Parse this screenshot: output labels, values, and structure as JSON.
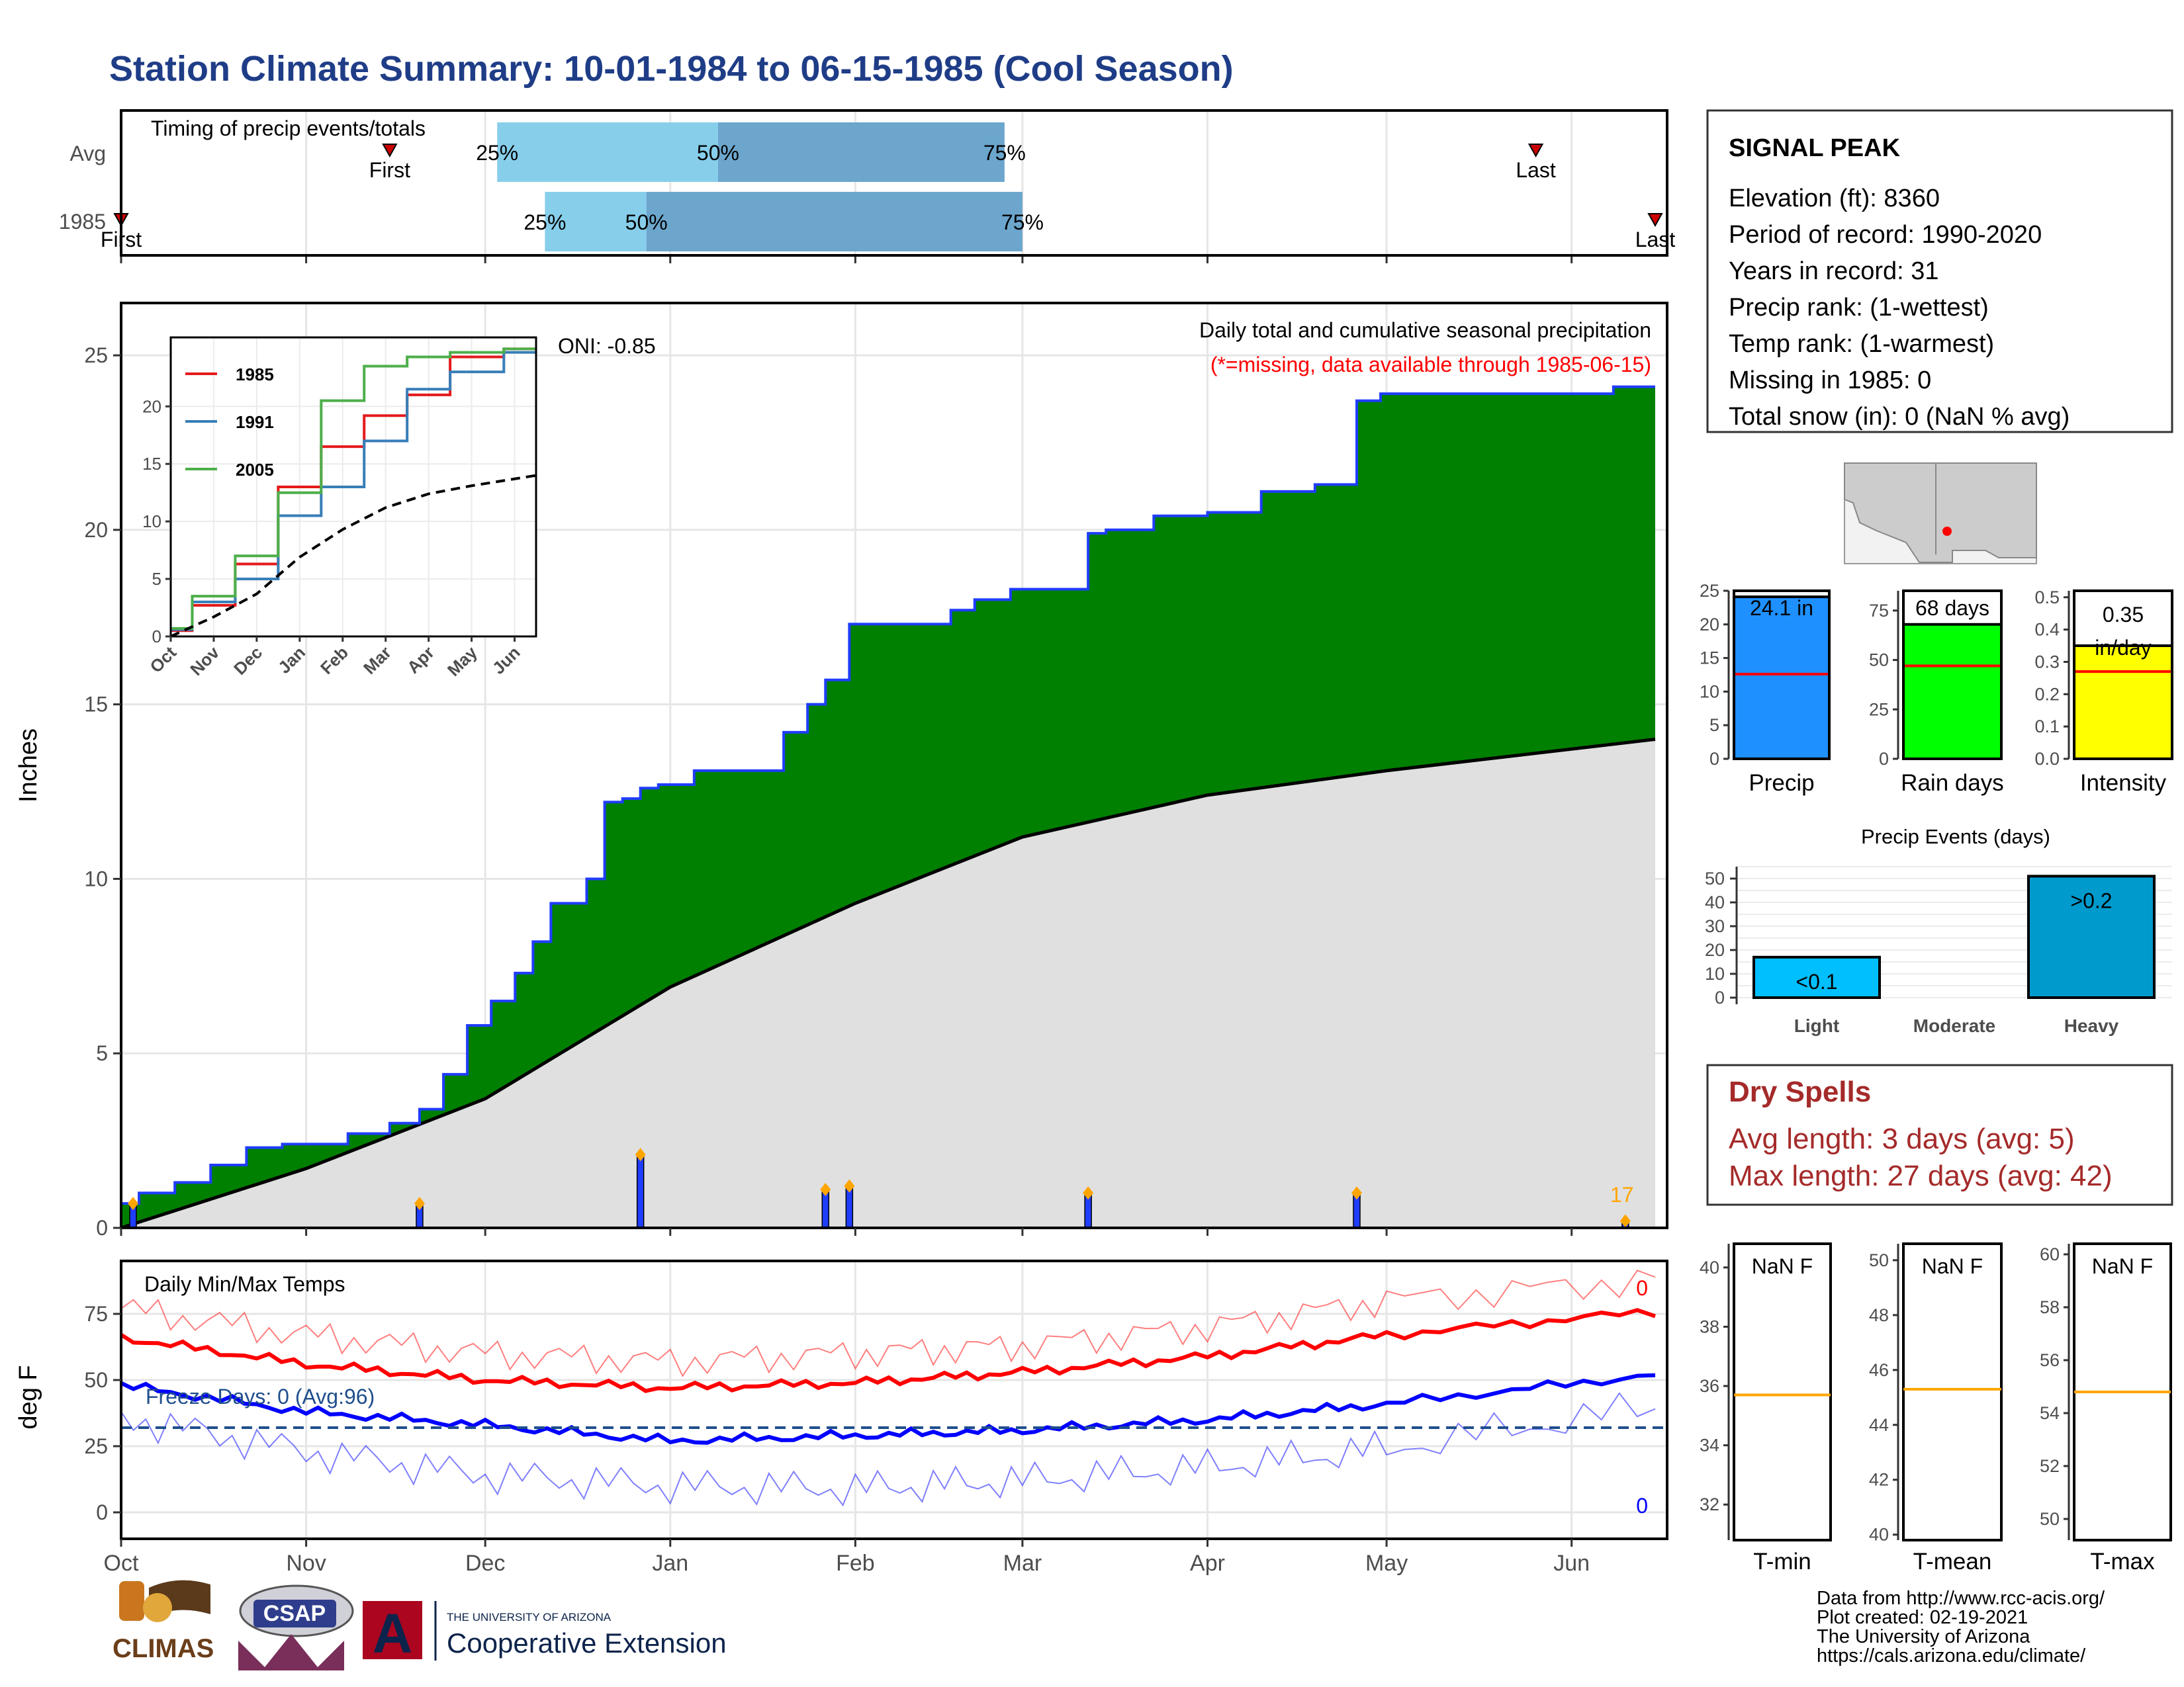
{
  "title": "Station Climate Summary: 10-01-1984 to 06-15-1985 (Cool Season)",
  "colors": {
    "title": "#1f3d87",
    "cum_fill": "#008000",
    "normal_fill": "#e0e0e0",
    "daily_bar": "#1f3dff",
    "marker": "#ffa500",
    "dry_spells": "#a52a2a",
    "max_temp": "#ff0000",
    "min_temp": "#0000ff"
  },
  "timing_panel": {
    "title": "Timing of precip events/totals",
    "rows": [
      {
        "label": "Avg",
        "first_label": "First",
        "last_label": "Last",
        "first": "Nov 15",
        "last": "May 26",
        "p25": "Dec 3",
        "p50": "Jan 9",
        "p75": "Feb 26"
      },
      {
        "label": "1985",
        "first_label": "First",
        "last_label": "Last",
        "first": "Oct 1",
        "last": "Jun 15",
        "p25": "Dec 11",
        "p50": "Dec 28",
        "p75": "Mar 1"
      }
    ],
    "pct_labels": [
      "25%",
      "50%",
      "75%"
    ]
  },
  "main_chart": {
    "ylabel": "Inches",
    "annotation_title": "Daily total and cumulative seasonal precipitation",
    "annotation_missing": "(*=missing, data available through 1985-06-15)",
    "oni_label": "ONI: -0.85",
    "count_label": "17",
    "y_ticks": [
      "0",
      "5",
      "10",
      "15",
      "20",
      "25"
    ],
    "x_ticks": [
      "Oct",
      "Nov",
      "Dec",
      "Jan",
      "Feb",
      "Mar",
      "Apr",
      "May",
      "Jun"
    ]
  },
  "inset": {
    "legend": [
      "1985",
      "1991",
      "2005"
    ],
    "legend_colors": [
      "#e41a1c",
      "#377eb8",
      "#4daf4a"
    ],
    "y_ticks": [
      "0",
      "5",
      "10",
      "15",
      "20"
    ],
    "x_ticks": [
      "Oct",
      "Nov",
      "Dec",
      "Jan",
      "Feb",
      "Mar",
      "Apr",
      "May",
      "Jun"
    ]
  },
  "temp_chart": {
    "ylabel": "deg F",
    "title": "Daily Min/Max Temps",
    "freeze_label": "Freeze Days: 0 (Avg:96)",
    "max_count": "0",
    "min_count": "0",
    "y_ticks": [
      "0",
      "25",
      "50",
      "75"
    ]
  },
  "station": {
    "name": "SIGNAL PEAK",
    "lines": [
      "Elevation (ft): 8360",
      "Period of record: 1990-2020",
      "Years in record: 31",
      "Precip rank:  (1-wettest)",
      "Temp rank:  (1-warmest)",
      "Missing in 1985: 0",
      "Total snow (in): 0 (NaN % avg)"
    ]
  },
  "mini_bars": [
    {
      "label": "Precip",
      "value_label": "24.1 in",
      "value": 24.1,
      "avg": 12.6,
      "ymax": 25,
      "ticks": [
        "0",
        "5",
        "10",
        "15",
        "20",
        "25"
      ],
      "color": "#1e90ff"
    },
    {
      "label": "Rain days",
      "value_label": "68 days",
      "value": 68,
      "avg": 47,
      "ymax": 85,
      "ticks": [
        "0",
        "25",
        "50",
        "75"
      ],
      "color": "#00ff00"
    },
    {
      "label": "Intensity",
      "value_label": "0.35 in/day",
      "value_label_1": "0.35",
      "value_label_2": "in/day",
      "value": 0.35,
      "avg": 0.27,
      "ymax": 0.52,
      "ticks": [
        "0.0",
        "0.1",
        "0.2",
        "0.3",
        "0.4",
        "0.5"
      ],
      "color": "#ffff00"
    }
  ],
  "precip_events": {
    "title": "Precip Events (days)",
    "categories": [
      "Light",
      "Moderate",
      "Heavy"
    ],
    "values": [
      17,
      0,
      51
    ],
    "bar_labels": [
      "<0.1",
      "",
      ">0.2"
    ],
    "ticks": [
      "0",
      "10",
      "20",
      "30",
      "40",
      "50"
    ],
    "colors": [
      "#00bfff",
      "#00bfff",
      "#009acd"
    ]
  },
  "dry_spells": {
    "title": "Dry Spells",
    "avg_line": "Avg length: 3 days (avg: 5)",
    "max_line": "Max length: 27 days (avg: 42)"
  },
  "temp_boxes": [
    {
      "label": "T-min",
      "value_label": "NaN F",
      "avg": 35.7,
      "ticks": [
        "32",
        "34",
        "36",
        "38",
        "40"
      ],
      "tvals": [
        32,
        34,
        36,
        38,
        40
      ],
      "ymin": 30.8,
      "ymax": 40.8
    },
    {
      "label": "T-mean",
      "value_label": "NaN F",
      "avg": 45.3,
      "ticks": [
        "40",
        "42",
        "44",
        "46",
        "48",
        "50"
      ],
      "tvals": [
        40,
        42,
        44,
        46,
        48,
        50
      ],
      "ymin": 39.8,
      "ymax": 50.6
    },
    {
      "label": "T-max",
      "value_label": "NaN F",
      "avg": 54.8,
      "ticks": [
        "50",
        "52",
        "54",
        "56",
        "58",
        "60"
      ],
      "tvals": [
        50,
        52,
        54,
        56,
        58,
        60
      ],
      "ymin": 49.2,
      "ymax": 60.4
    }
  ],
  "footer": {
    "lines": [
      "Data from http://www.rcc-acis.org/",
      "Plot created: 02-19-2021",
      "The University of Arizona",
      "https://cals.arizona.edu/climate/"
    ],
    "logo_climas": "CLIMAS",
    "logo_csap": "CSAP",
    "logo_ua_letter": "A",
    "ua_small": "THE UNIVERSITY OF ARIZONA",
    "ua_big": "Cooperative Extension"
  },
  "chart_data": [
    {
      "type": "area",
      "title": "Daily total and cumulative seasonal precipitation",
      "ylabel": "Inches",
      "ylim": [
        0,
        26.5
      ],
      "x_range": [
        "1984-10-01",
        "1985-06-15"
      ],
      "series": [
        {
          "name": "1985",
          "step_dates": [
            "1984-10-01",
            "1984-10-04",
            "1984-10-10",
            "1984-10-16",
            "1984-10-22",
            "1984-10-28",
            "1984-11-08",
            "1984-11-15",
            "1984-11-20",
            "1984-11-24",
            "1984-11-28",
            "1984-12-02",
            "1984-12-06",
            "1984-12-09",
            "1984-12-12",
            "1984-12-18",
            "1984-12-21",
            "1984-12-24",
            "1984-12-27",
            "1984-12-30",
            "1985-01-05",
            "1985-01-09",
            "1985-01-20",
            "1985-01-24",
            "1985-01-27",
            "1985-01-31",
            "1985-02-03",
            "1985-02-17",
            "1985-02-21",
            "1985-02-27",
            "1985-03-12",
            "1985-03-15",
            "1985-03-23",
            "1985-04-01",
            "1985-04-10",
            "1985-04-19",
            "1985-04-26",
            "1985-04-30",
            "1985-05-05",
            "1985-05-27",
            "1985-06-08"
          ],
          "step_values": [
            0.7,
            1.0,
            1.3,
            1.8,
            2.3,
            2.4,
            2.7,
            3.0,
            3.4,
            4.4,
            5.8,
            6.5,
            7.3,
            8.2,
            9.3,
            10.0,
            12.2,
            12.3,
            12.6,
            12.7,
            13.1,
            13.1,
            14.2,
            15.0,
            15.7,
            17.3,
            17.3,
            17.7,
            18.0,
            18.3,
            19.9,
            20.0,
            20.4,
            20.5,
            21.1,
            21.3,
            23.7,
            23.9,
            23.9,
            23.9,
            24.1
          ]
        },
        {
          "name": "Normal",
          "x": [
            "1984-10-01",
            "1984-11-01",
            "1984-12-01",
            "1985-01-01",
            "1985-02-01",
            "1985-03-01",
            "1985-04-01",
            "1985-05-01",
            "1985-06-15"
          ],
          "values": [
            0.0,
            1.7,
            3.7,
            6.9,
            9.3,
            11.2,
            12.4,
            13.1,
            14.0
          ]
        }
      ],
      "daily": [
        {
          "date": "1984-10-03",
          "value": 0.7
        },
        {
          "date": "1984-11-20",
          "value": 0.7
        },
        {
          "date": "1984-12-27",
          "value": 2.1
        },
        {
          "date": "1985-01-27",
          "value": 1.1
        },
        {
          "date": "1985-01-31",
          "value": 1.2
        },
        {
          "date": "1985-03-12",
          "value": 1.0
        },
        {
          "date": "1985-04-26",
          "value": 1.0
        },
        {
          "date": "1985-06-10",
          "value": 0.2
        }
      ]
    },
    {
      "type": "line",
      "title": "",
      "x_ticks": [
        "Oct",
        "Nov",
        "Dec",
        "Jan",
        "Feb",
        "Mar",
        "Apr",
        "May",
        "Jun"
      ],
      "ylim": [
        0,
        25
      ],
      "series": [
        {
          "name": "1985",
          "x": [
            0,
            1,
            2,
            3,
            4,
            5,
            6,
            7,
            8.5
          ],
          "values": [
            0.5,
            2.7,
            6.3,
            13.0,
            16.5,
            19.2,
            21.0,
            24.3,
            25.0
          ]
        },
        {
          "name": "1991",
          "x": [
            0,
            1,
            2,
            3,
            4,
            5,
            6,
            7,
            8.5
          ],
          "values": [
            0.6,
            3.0,
            5.0,
            10.5,
            13.0,
            17.0,
            21.5,
            23.0,
            24.7
          ]
        },
        {
          "name": "2005",
          "x": [
            0,
            1,
            2,
            3,
            4,
            5,
            6,
            7,
            8.5
          ],
          "values": [
            0.7,
            3.5,
            7.0,
            12.5,
            20.5,
            23.5,
            24.3,
            24.7,
            25.0
          ]
        },
        {
          "name": "",
          "x": [
            0,
            1,
            2,
            3,
            4,
            5,
            6,
            7,
            8.5
          ],
          "values": [
            0.0,
            1.7,
            3.7,
            6.9,
            9.3,
            11.2,
            12.4,
            13.1,
            14.0
          ]
        }
      ]
    },
    {
      "type": "line",
      "title": "Daily Min/Max Temps",
      "ylabel": "deg F",
      "ylim": [
        -10,
        95
      ],
      "x": [
        "1984-10-01",
        "1984-11-01",
        "1984-12-01",
        "1985-01-01",
        "1985-02-01",
        "1985-03-01",
        "1985-04-01",
        "1985-05-01",
        "1985-06-15"
      ],
      "series": [
        {
          "values": [
            77,
            67,
            60,
            57,
            60,
            63,
            70,
            80,
            88
          ]
        },
        {
          "values": [
            66,
            56,
            50,
            47,
            49,
            53,
            59,
            67,
            76
          ]
        },
        {
          "values": [
            48,
            38,
            33,
            27,
            29,
            31,
            35,
            41,
            52
          ]
        },
        {
          "values": [
            36,
            23,
            14,
            10,
            9,
            12,
            17,
            24,
            40
          ]
        }
      ],
      "freeze_line": 32
    }
  ]
}
